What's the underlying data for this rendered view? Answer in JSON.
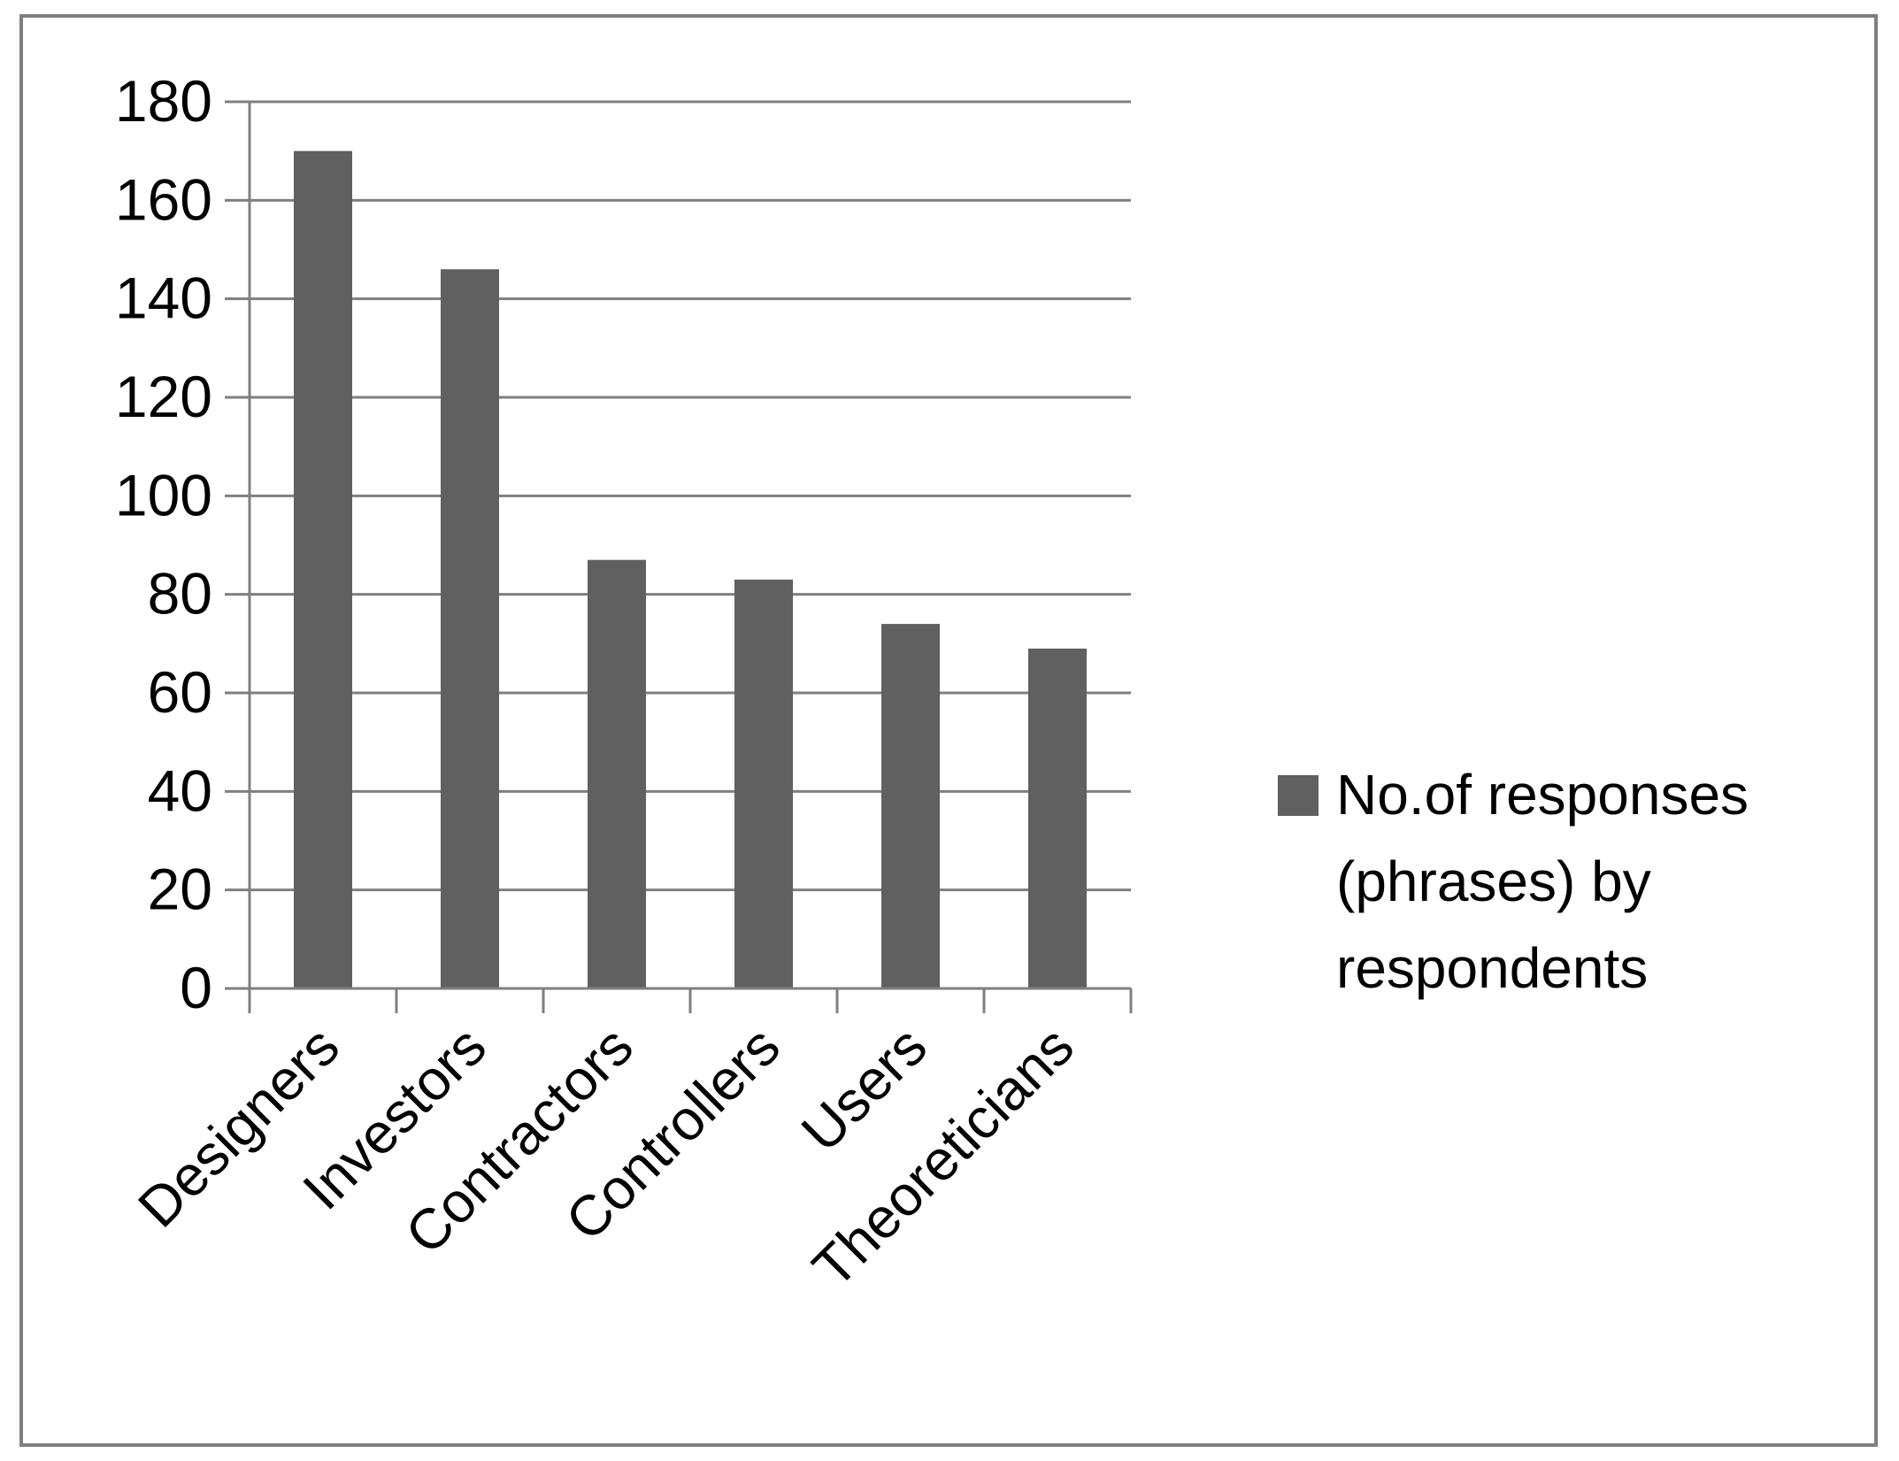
{
  "chart_data": {
    "type": "bar",
    "categories": [
      "Designers",
      "Investors",
      "Contractors",
      "Controllers",
      "Users",
      "Theoreticians"
    ],
    "series": [
      {
        "name": "No.of responses (phrases) by respondents",
        "values": [
          170,
          146,
          87,
          83,
          74,
          69
        ]
      }
    ],
    "ylim": [
      0,
      180
    ],
    "yticks": [
      0,
      20,
      40,
      60,
      80,
      100,
      120,
      140,
      160,
      180
    ],
    "grid": true,
    "legend_position": "right",
    "legend_lines": [
      "No.of responses",
      "(phrases) by",
      "respondents"
    ],
    "colors": {
      "bar": "#606060",
      "grid": "#7f7f7f",
      "axis": "#7f7f7f",
      "frame": "#7f7f7f"
    }
  }
}
